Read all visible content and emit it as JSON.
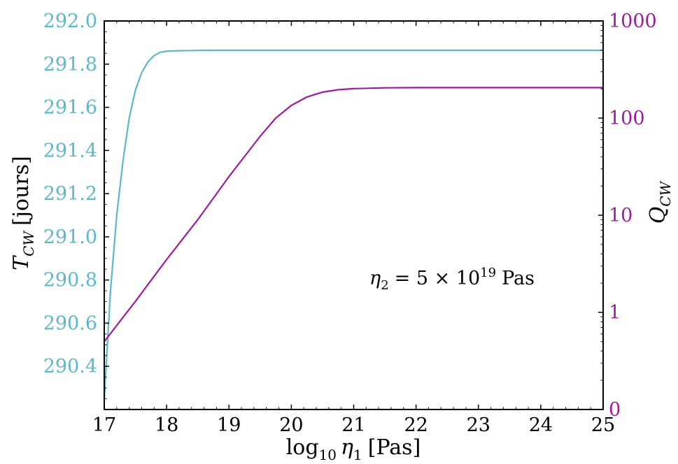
{
  "chart_data": {
    "type": "line",
    "x_axis": {
      "label_main": "log",
      "label_sub": "10",
      "label_var": "η",
      "label_var_sub": "1",
      "label_unit": "[Pas]",
      "range": [
        17,
        25
      ],
      "ticks": [
        17,
        18,
        19,
        20,
        21,
        22,
        23,
        24,
        25
      ],
      "tick_labels": [
        "17",
        "18",
        "19",
        "20",
        "21",
        "22",
        "23",
        "24",
        "25"
      ]
    },
    "y_left": {
      "label_var": "T",
      "label_sub": "CW",
      "label_unit": "[jours]",
      "range": [
        290.2,
        292.0
      ],
      "ticks": [
        290.4,
        290.6,
        290.8,
        291.0,
        291.2,
        291.4,
        291.6,
        291.8,
        292.0
      ],
      "tick_labels": [
        "290.4",
        "290.6",
        "290.8",
        "291.0",
        "291.2",
        "291.4",
        "291.6",
        "291.8",
        "292.0"
      ],
      "color": "#5bb8cc"
    },
    "y_right": {
      "label_var": "Q",
      "label_sub": "CW",
      "scale": "log",
      "range_decades": [
        -1,
        3
      ],
      "ticks": [
        0.1,
        1,
        10,
        100,
        1000
      ],
      "tick_labels": [
        "0",
        "1",
        "10",
        "100",
        "1000"
      ],
      "color": "#a01aa0"
    },
    "series": [
      {
        "axis": "left",
        "color": "#5bb8cc",
        "x": [
          17.0,
          17.1,
          17.2,
          17.3,
          17.4,
          17.5,
          17.6,
          17.7,
          17.8,
          17.9,
          18.0,
          18.2,
          18.4,
          18.6,
          19.0,
          20.0,
          22.0,
          25.0
        ],
        "y": [
          290.25,
          290.75,
          291.1,
          291.35,
          291.55,
          291.68,
          291.76,
          291.81,
          291.84,
          291.855,
          291.86,
          291.862,
          291.863,
          291.864,
          291.864,
          291.864,
          291.864,
          291.864
        ]
      },
      {
        "axis": "right",
        "color": "#a01aa0",
        "x": [
          17.0,
          17.5,
          18.0,
          18.5,
          19.0,
          19.5,
          19.75,
          20.0,
          20.25,
          20.5,
          20.75,
          21.0,
          21.5,
          22.0,
          23.0,
          25.0
        ],
        "y": [
          0.5,
          1.3,
          3.5,
          9.0,
          25.0,
          65.0,
          100.0,
          135.0,
          165.0,
          185.0,
          196.0,
          201.0,
          205.0,
          206.0,
          206.0,
          206.0
        ]
      }
    ],
    "annotation": {
      "var": "η",
      "sub": "2",
      "eq": "= 5 × 10",
      "exp": "19",
      "unit": "Pas"
    }
  }
}
